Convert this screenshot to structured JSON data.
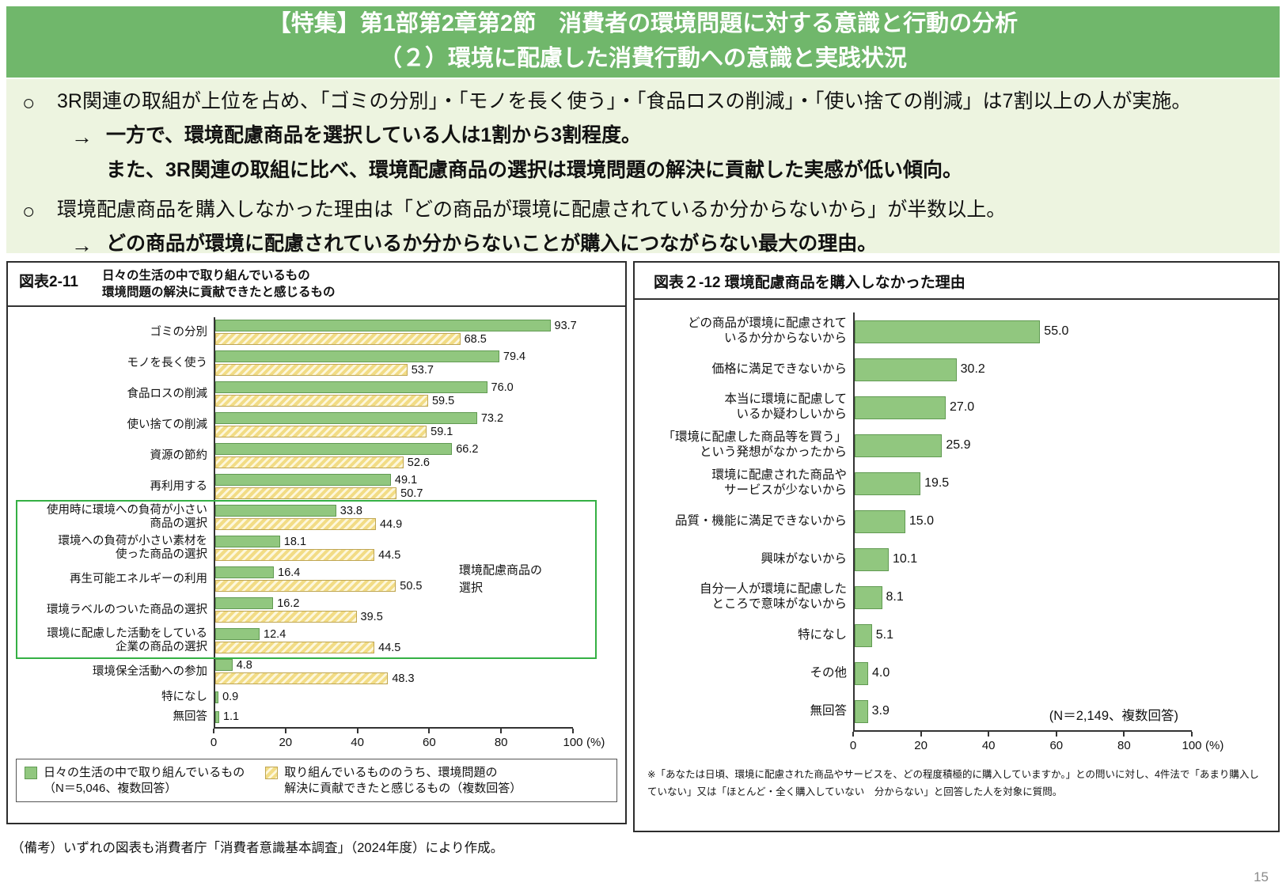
{
  "header": {
    "line1": "【特集】第1部第2章第2節　消費者の環境問題に対する意識と行動の分析",
    "line2": "（２）環境に配慮した消費行動への意識と実践状況",
    "bg_color": "#70b76b"
  },
  "summary": {
    "bg_color": "#edf4e0",
    "points": [
      {
        "bullet": "○",
        "text": "3R関連の取組が上位を占め、「ゴミの分別」・「モノを長く使う」・「食品ロスの削減」・「使い捨ての削減」は7割以上の人が実施。"
      },
      {
        "bullet": "→",
        "text": "一方で、環境配慮商品を選択している人は1割から3割程度。"
      },
      {
        "bullet": "",
        "text": "また、3R関連の取組に比べ、環境配慮商品の選択は環境問題の解決に貢献した実感が低い傾向。"
      },
      {
        "bullet": "○",
        "text": "環境配慮商品を購入しなかった理由は「どの商品が環境に配慮されているか分からないから」が半数以上。"
      },
      {
        "bullet": "→",
        "text": "どの商品が環境に配慮されているか分からないことが購入につながらない最大の理由。"
      }
    ]
  },
  "chart_data": [
    {
      "type": "bar",
      "orientation": "horizontal",
      "figure_label": "図表2-11",
      "title_lines": [
        "日々の生活の中で取り組んでいるもの",
        "環境問題の解決に貢献できたと感じるもの"
      ],
      "categories": [
        [
          "ゴミの分別"
        ],
        [
          "モノを長く使う"
        ],
        [
          "食品ロスの削減"
        ],
        [
          "使い捨ての削減"
        ],
        [
          "資源の節約"
        ],
        [
          "再利用する"
        ],
        [
          "使用時に環境への負荷が小さい",
          "商品の選択"
        ],
        [
          "環境への負荷が小さい素材を",
          "使った商品の選択"
        ],
        [
          "再生可能エネルギーの利用"
        ],
        [
          "環境ラベルのついた商品の選択"
        ],
        [
          "環境に配慮した活動をしている",
          "企業の商品の選択"
        ],
        [
          "環境保全活動への参加"
        ],
        [
          "特になし"
        ],
        [
          "無回答"
        ]
      ],
      "series": [
        {
          "name": "日々の生活の中で取り組んでいるもの（N＝5,046、複数回答）",
          "color": "#91c77f",
          "values": [
            93.7,
            79.4,
            76.0,
            73.2,
            66.2,
            49.1,
            33.8,
            18.1,
            16.4,
            16.2,
            12.4,
            4.8,
            0.9,
            1.1
          ]
        },
        {
          "name": "取り組んでいるもののうち、環境問題の解決に貢献できたと感じるもの（複数回答）",
          "color": "#f2dc85",
          "pattern": "diagonal-hatch",
          "values": [
            68.5,
            53.7,
            59.5,
            59.1,
            52.6,
            50.7,
            44.9,
            44.5,
            50.5,
            39.5,
            44.5,
            48.3,
            null,
            null
          ]
        }
      ],
      "xlim": [
        0,
        100
      ],
      "ticks": [
        0,
        20,
        40,
        60,
        80,
        100
      ],
      "axis_unit": "(%)",
      "group_annotation": {
        "label_lines": [
          "環境配慮商品の",
          "選択"
        ],
        "start_index": 6,
        "end_index": 10,
        "border_color": "#35b044"
      },
      "legend": [
        {
          "swatch": "s0",
          "lines": [
            "日々の生活の中で取り組んでいるもの",
            "（N＝5,046、複数回答）"
          ]
        },
        {
          "swatch": "s1",
          "lines": [
            "取り組んでいるもののうち、環境問題の",
            "解決に貢献できたと感じるもの（複数回答）"
          ]
        }
      ]
    },
    {
      "type": "bar",
      "orientation": "horizontal",
      "figure_label": "図表２-12",
      "title": "環境配慮商品を購入しなかった理由",
      "categories": [
        [
          "どの商品が環境に配慮されて",
          "いるか分からないから"
        ],
        [
          "価格に満足できないから"
        ],
        [
          "本当に環境に配慮して",
          "いるか疑わしいから"
        ],
        [
          "「環境に配慮した商品等を買う」",
          "という発想がなかったから"
        ],
        [
          "環境に配慮された商品や",
          "サービスが少ないから"
        ],
        [
          "品質・機能に満足できないから"
        ],
        [
          "興味がないから"
        ],
        [
          "自分一人が環境に配慮した",
          "ところで意味がないから"
        ],
        [
          "特になし"
        ],
        [
          "その他"
        ],
        [
          "無回答"
        ]
      ],
      "series": [
        {
          "name": "環境配慮商品を購入しなかった理由",
          "color": "#91c77f",
          "values": [
            55.0,
            30.2,
            27.0,
            25.9,
            19.5,
            15.0,
            10.1,
            8.1,
            5.1,
            4.0,
            3.9
          ]
        }
      ],
      "xlim": [
        0,
        100
      ],
      "ticks": [
        0,
        20,
        40,
        60,
        80,
        100
      ],
      "axis_unit": "(%)",
      "n_note": "(N＝2,149、複数回答)",
      "footnote": "※「あなたは日頃、環境に配慮された商品やサービスを、どの程度積極的に購入していますか。」との問いに対し、4件法で「あまり購入していない」又は「ほとんど・全く購入していない　分からない」と回答した人を対象に質問。"
    }
  ],
  "footer": {
    "bottom_note": "（備考）いずれの図表も消費者庁「消費者意識基本調査」（2024年度）により作成。",
    "page_number": "15"
  }
}
